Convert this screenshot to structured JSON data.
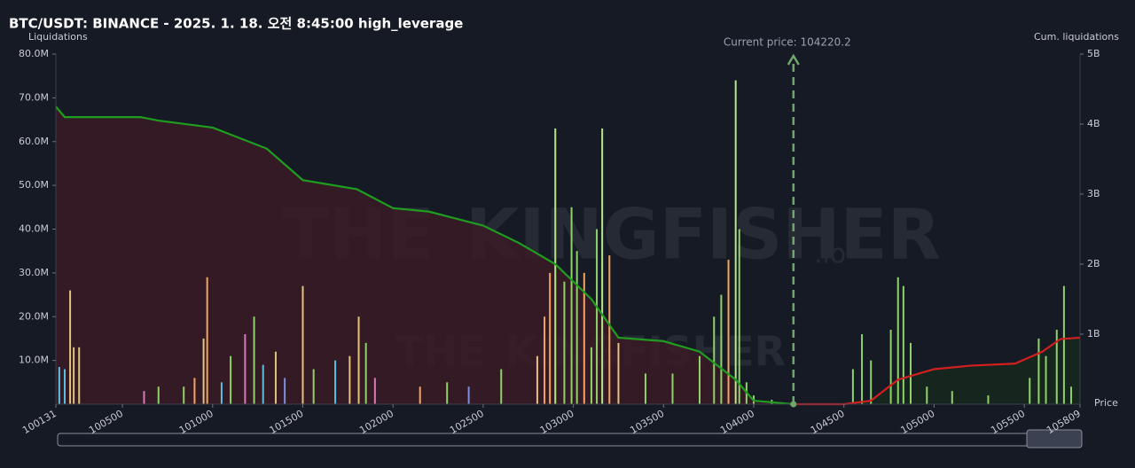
{
  "chart_data": {
    "type": "liquidation",
    "title": "BTC/USDT: BINANCE - 2025. 1. 18. 오전 8:45:00 high_leverage",
    "y_label": "Liquidations",
    "y2_label": "Cum. liquidations",
    "x_label": "Price",
    "watermark": [
      "THE",
      "KINGFISHER",
      ".io"
    ],
    "current_price": 104220.2,
    "current_price_label": "Current price: 104220.2",
    "current_price_color": "#6fa86a",
    "xlim": [
      100131,
      105809
    ],
    "xticks": [
      100131,
      100500,
      101000,
      101500,
      102000,
      102500,
      103000,
      103500,
      104000,
      104500,
      105000,
      105500,
      105809
    ],
    "ylim": [
      0,
      80000000
    ],
    "yticks": [
      {
        "value": 10000000,
        "label": "10.0M"
      },
      {
        "value": 20000000,
        "label": "20.0M"
      },
      {
        "value": 30000000,
        "label": "30.0M"
      },
      {
        "value": 40000000,
        "label": "40.0M"
      },
      {
        "value": 50000000,
        "label": "50.0M"
      },
      {
        "value": 60000000,
        "label": "60.0M"
      },
      {
        "value": 70000000,
        "label": "70.0M"
      },
      {
        "value": 80000000,
        "label": "80.0M"
      }
    ],
    "y2lim": [
      0,
      5000000000
    ],
    "y2ticks": [
      {
        "value": 1000000000,
        "label": "1B"
      },
      {
        "value": 2000000000,
        "label": "2B"
      },
      {
        "value": 3000000000,
        "label": "3B"
      },
      {
        "value": 4000000000,
        "label": "4B"
      },
      {
        "value": 5000000000,
        "label": "5B"
      }
    ],
    "bars": {
      "x": [
        100150,
        100180,
        100210,
        100230,
        100260,
        100620,
        100700,
        100840,
        100900,
        100950,
        100970,
        101050,
        101100,
        101180,
        101230,
        101280,
        101350,
        101400,
        101500,
        101560,
        101680,
        101760,
        101810,
        101850,
        101900,
        102150,
        102300,
        102420,
        102600,
        102800,
        102840,
        102870,
        102900,
        102950,
        102990,
        103020,
        103060,
        103100,
        103130,
        103160,
        103200,
        103250,
        103400,
        103550,
        103700,
        103780,
        103820,
        103860,
        103900,
        103920,
        103960,
        104000,
        104100,
        104550,
        104600,
        104650,
        104760,
        104800,
        104830,
        104870,
        104960,
        105100,
        105300,
        105530,
        105580,
        105620,
        105680,
        105720,
        105760
      ],
      "values": [
        8500000,
        8000000,
        26000000,
        13000000,
        13000000,
        3000000,
        4000000,
        4000000,
        6000000,
        15000000,
        29000000,
        5000000,
        11000000,
        16000000,
        20000000,
        9000000,
        12000000,
        6000000,
        27000000,
        8000000,
        10000000,
        11000000,
        20000000,
        14000000,
        6000000,
        4000000,
        5000000,
        4000000,
        8000000,
        11000000,
        20000000,
        30000000,
        63000000,
        28000000,
        45000000,
        35000000,
        30000000,
        13000000,
        40000000,
        63000000,
        34000000,
        14000000,
        7000000,
        7000000,
        11000000,
        20000000,
        25000000,
        33000000,
        74000000,
        40000000,
        5000000,
        2000000,
        1000000,
        8000000,
        16000000,
        10000000,
        17000000,
        29000000,
        27000000,
        14000000,
        4000000,
        3000000,
        2000000,
        6000000,
        15000000,
        11000000,
        17000000,
        27000000,
        4000000
      ],
      "colors": [
        "#5bc0de",
        "#5bc0de",
        "#e3c27c",
        "#e3c27c",
        "#e3c27c",
        "#d77bb8",
        "#8fd26a",
        "#8fd26a",
        "#f4a460",
        "#e3c27c",
        "#f4a460",
        "#5bc0de",
        "#8fd26a",
        "#d77bb8",
        "#8fd26a",
        "#5bc0de",
        "#e3c27c",
        "#7b8fe0",
        "#e3c27c",
        "#8fd26a",
        "#5bc0de",
        "#e3c27c",
        "#e3c27c",
        "#8fd26a",
        "#d77bb8",
        "#f4a460",
        "#8fd26a",
        "#7b8fe0",
        "#8fd26a",
        "#e3c27c",
        "#f4a460",
        "#f4a460",
        "#b6e88a",
        "#8fd26a",
        "#8fd26a",
        "#8fd26a",
        "#f4a460",
        "#8fd26a",
        "#8fd26a",
        "#b6e88a",
        "#f4a460",
        "#e3c27c",
        "#8fd26a",
        "#8fd26a",
        "#8fd26a",
        "#8fd26a",
        "#8fd26a",
        "#f4a460",
        "#b6e88a",
        "#8fd26a",
        "#8fd26a",
        "#8fd26a",
        "#8fd26a",
        "#8fd26a",
        "#8fd26a",
        "#8fd26a",
        "#8fd26a",
        "#8fd26a",
        "#8fd26a",
        "#8fd26a",
        "#8fd26a",
        "#8fd26a",
        "#8fd26a",
        "#8fd26a",
        "#8fd26a",
        "#8fd26a",
        "#8fd26a",
        "#8fd26a",
        "#8fd26a"
      ]
    },
    "lines": [
      {
        "axis": "y2",
        "color": "#1f9d1f",
        "fill": "#3a1b24",
        "x": [
          100131,
          100180,
          100600,
          100700,
          101000,
          101300,
          101500,
          101800,
          102000,
          102200,
          102500,
          102700,
          102900,
          103100,
          103250,
          103500,
          103700,
          103900,
          104000,
          104220.2
        ],
        "values": [
          4250000000,
          4100000000,
          4100000000,
          4050000000,
          3950000000,
          3650000000,
          3200000000,
          3070000000,
          2800000000,
          2750000000,
          2550000000,
          2300000000,
          2000000000,
          1500000000,
          950000000,
          900000000,
          750000000,
          350000000,
          50000000,
          0
        ]
      },
      {
        "axis": "y2",
        "color": "#d41f1f",
        "fill": "#17281e",
        "x": [
          104220.2,
          104500,
          104650,
          104800,
          105000,
          105200,
          105450,
          105600,
          105700,
          105809
        ],
        "values": [
          0,
          0,
          50000000,
          350000000,
          500000000,
          550000000,
          580000000,
          750000000,
          930000000,
          950000000
        ]
      }
    ]
  }
}
